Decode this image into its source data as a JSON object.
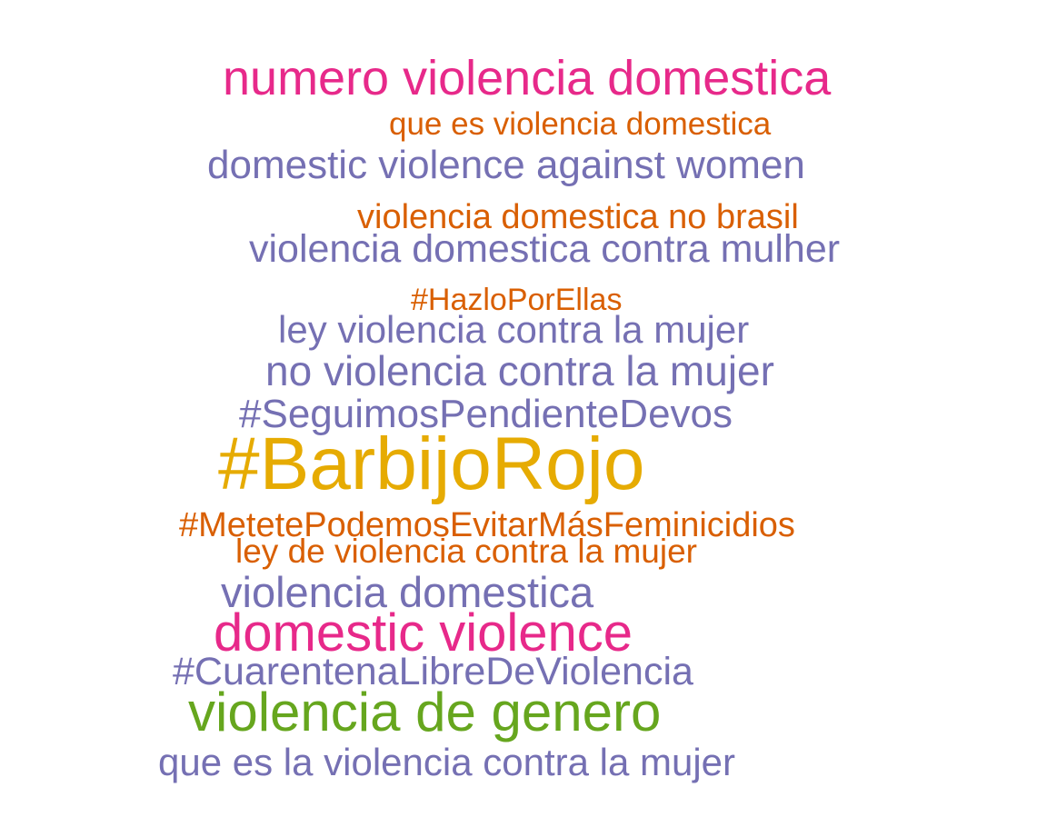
{
  "chart_data": {
    "type": "wordcloud",
    "title": "",
    "colors": {
      "magenta": "#e7298a",
      "orange": "#d95f02",
      "purple": "#7570b3",
      "gold": "#e6ab02",
      "green": "#66a61e"
    },
    "words": [
      {
        "text": "numero violencia domestica",
        "color": "#e7298a",
        "weight": 54
      },
      {
        "text": "que es violencia domestica",
        "color": "#d95f02",
        "weight": 35
      },
      {
        "text": "domestic violence against women",
        "color": "#7570b3",
        "weight": 44
      },
      {
        "text": "violencia domestica no brasil",
        "color": "#d95f02",
        "weight": 38
      },
      {
        "text": "violencia domestica contra mulher",
        "color": "#7570b3",
        "weight": 43
      },
      {
        "text": "#HazloPorEllas",
        "color": "#d95f02",
        "weight": 34
      },
      {
        "text": "ley violencia contra la mujer",
        "color": "#7570b3",
        "weight": 42
      },
      {
        "text": "no violencia contra la mujer",
        "color": "#7570b3",
        "weight": 46
      },
      {
        "text": "#SeguimosPendienteDevos",
        "color": "#7570b3",
        "weight": 44
      },
      {
        "text": "#BarbijoRojo",
        "color": "#e6ab02",
        "weight": 82
      },
      {
        "text": "#MetetePodemosEvitarMásFeminicidios",
        "color": "#d95f02",
        "weight": 38
      },
      {
        "text": "ley de violencia contra la mujer",
        "color": "#d95f02",
        "weight": 37
      },
      {
        "text": "violencia domestica",
        "color": "#7570b3",
        "weight": 47
      },
      {
        "text": "domestic violence",
        "color": "#e7298a",
        "weight": 58
      },
      {
        "text": "#CuarentenaLibreDeViolencia",
        "color": "#7570b3",
        "weight": 43
      },
      {
        "text": "violencia de genero",
        "color": "#66a61e",
        "weight": 60
      },
      {
        "text": "que es la violencia contra la mujer",
        "color": "#7570b3",
        "weight": 42
      }
    ]
  }
}
